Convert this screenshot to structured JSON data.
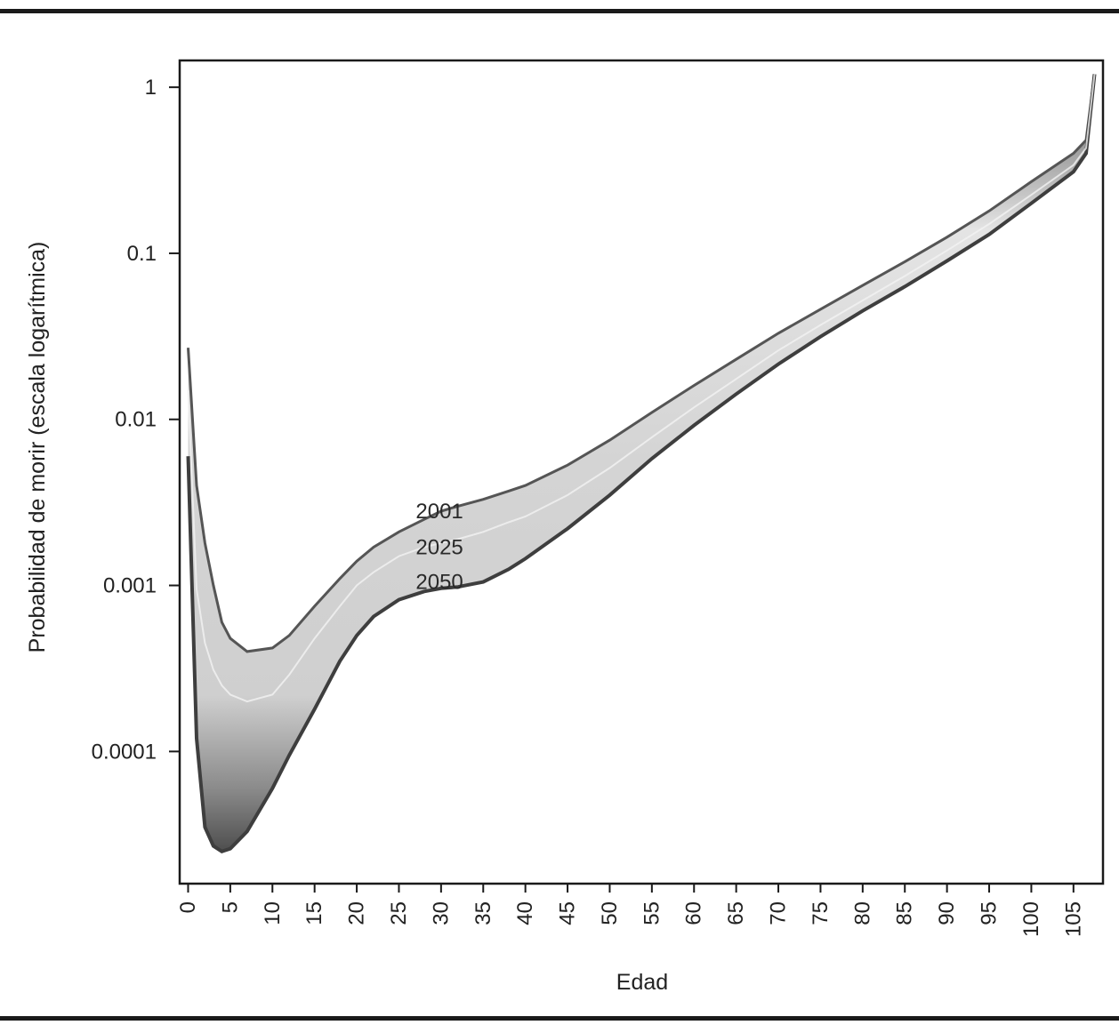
{
  "chart_data": {
    "type": "area",
    "title": "",
    "xlabel": "Edad",
    "ylabel": "Probabilidad de morir (escala logarítmica)",
    "xlim": [
      -1,
      108.5
    ],
    "ylim": [
      1.6e-05,
      1.45
    ],
    "yscale": "log",
    "grid": false,
    "legend": "none",
    "x_ticks": [
      0,
      5,
      10,
      15,
      20,
      25,
      30,
      35,
      40,
      45,
      50,
      55,
      60,
      65,
      70,
      75,
      80,
      85,
      90,
      95,
      100,
      105
    ],
    "x_tick_labels": [
      "0",
      "5",
      "10",
      "15",
      "20",
      "25",
      "30",
      "35",
      "40",
      "45",
      "50",
      "55",
      "60",
      "65",
      "70",
      "75",
      "80",
      "85",
      "90",
      "95",
      "100",
      "105"
    ],
    "y_ticks": [
      0.0001,
      0.001,
      0.01,
      0.1,
      1
    ],
    "y_tick_labels": [
      "0.0001",
      "0.001",
      "0.01",
      "0.1",
      "1"
    ],
    "x": [
      0,
      1,
      2,
      3,
      4,
      5,
      7,
      10,
      12,
      15,
      18,
      20,
      22,
      25,
      28,
      30,
      32,
      35,
      38,
      40,
      45,
      50,
      55,
      60,
      65,
      70,
      75,
      80,
      85,
      90,
      95,
      100,
      105,
      106.5,
      107.5
    ],
    "series": [
      {
        "name": "2001",
        "label": "2001",
        "label_at": [
          27,
          0.0028
        ],
        "values": [
          0.027,
          0.004,
          0.0018,
          0.001,
          0.0006,
          0.00048,
          0.0004,
          0.00042,
          0.0005,
          0.00075,
          0.0011,
          0.0014,
          0.0017,
          0.0021,
          0.0025,
          0.0028,
          0.003,
          0.0033,
          0.0037,
          0.004,
          0.0053,
          0.0075,
          0.011,
          0.016,
          0.023,
          0.033,
          0.046,
          0.064,
          0.089,
          0.125,
          0.18,
          0.27,
          0.4,
          0.48,
          1.2
        ]
      },
      {
        "name": "2025",
        "label": "2025",
        "label_at": [
          27,
          0.0017
        ],
        "values": [
          0.015,
          0.00095,
          0.00045,
          0.00031,
          0.00025,
          0.00022,
          0.0002,
          0.00022,
          0.00029,
          0.00048,
          0.00075,
          0.001,
          0.0012,
          0.0015,
          0.0017,
          0.0018,
          0.0019,
          0.0021,
          0.0024,
          0.0026,
          0.0035,
          0.0051,
          0.0078,
          0.0118,
          0.0175,
          0.026,
          0.037,
          0.052,
          0.073,
          0.104,
          0.15,
          0.225,
          0.34,
          0.43,
          1.2
        ]
      },
      {
        "name": "2050",
        "label": "2050",
        "label_at": [
          27,
          0.00105
        ],
        "values": [
          0.006,
          0.00012,
          3.5e-05,
          2.7e-05,
          2.5e-05,
          2.6e-05,
          3.3e-05,
          6e-05,
          9.5e-05,
          0.00018,
          0.00035,
          0.0005,
          0.00065,
          0.00082,
          0.00092,
          0.00096,
          0.00098,
          0.00105,
          0.00125,
          0.00145,
          0.0022,
          0.0035,
          0.0058,
          0.0092,
          0.0142,
          0.0215,
          0.0315,
          0.045,
          0.063,
          0.09,
          0.13,
          0.2,
          0.31,
          0.4,
          1.2
        ]
      }
    ],
    "colors": {
      "band_dark": "#5a5a5a",
      "band_mid": "#9a9a9a",
      "band_light": "#dedede",
      "axis": "#1a1a1a"
    }
  }
}
